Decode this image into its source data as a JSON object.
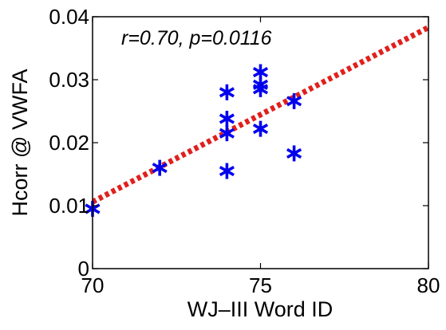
{
  "chart_data": {
    "type": "scatter",
    "title": "",
    "annotation": "r=0.70, p=0.0116",
    "xlabel": "WJ–III Word ID",
    "ylabel": "Hcorr @ VWFA",
    "xlim": [
      70,
      80
    ],
    "ylim": [
      0,
      0.04
    ],
    "xticks": [
      70,
      75,
      80
    ],
    "xtick_labels": [
      "70",
      "75",
      "80"
    ],
    "yticks": [
      0,
      0.01,
      0.02,
      0.03,
      0.04
    ],
    "ytick_labels": [
      "0",
      "0.01",
      "0.02",
      "0.03",
      "0.04"
    ],
    "grid": false,
    "series": [
      {
        "marker": "asterisk",
        "color": "#0000ee",
        "points": [
          {
            "x": 70,
            "y": 0.0095
          },
          {
            "x": 72,
            "y": 0.016
          },
          {
            "x": 74,
            "y": 0.0155
          },
          {
            "x": 74,
            "y": 0.0215
          },
          {
            "x": 74,
            "y": 0.0238
          },
          {
            "x": 74,
            "y": 0.028
          },
          {
            "x": 75,
            "y": 0.0222
          },
          {
            "x": 75,
            "y": 0.0285
          },
          {
            "x": 75,
            "y": 0.0292
          },
          {
            "x": 75,
            "y": 0.0312
          },
          {
            "x": 76,
            "y": 0.0183
          },
          {
            "x": 76,
            "y": 0.0266
          }
        ]
      }
    ],
    "fit_line": {
      "style": "dotted",
      "color": "#e0201c",
      "x": [
        70,
        80
      ],
      "y": [
        0.0106,
        0.0383
      ]
    }
  }
}
